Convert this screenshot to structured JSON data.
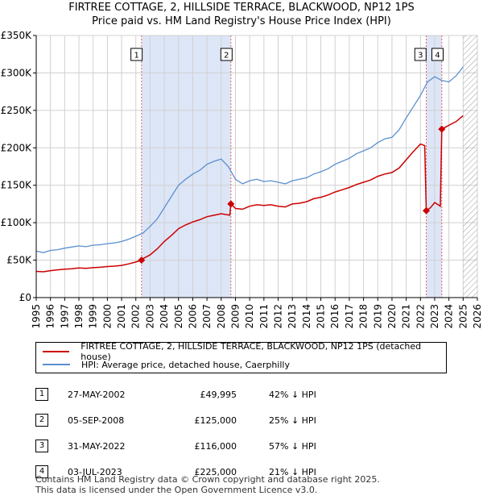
{
  "title_line1": "FIRTREE COTTAGE, 2, HILLSIDE TERRACE, BLACKWOOD, NP12 1PS",
  "title_line2": "Price paid vs. HM Land Registry's House Price Index (HPI)",
  "legend": {
    "property_label": "FIRTREE COTTAGE, 2, HILLSIDE TERRACE, BLACKWOOD, NP12 1PS (detached house)",
    "hpi_label": "HPI: Average price, detached house, Caerphilly"
  },
  "colors": {
    "property": "#cc0000",
    "hpi": "#5b8fd0",
    "shade": "#dde6f7",
    "grid": "#d0d0d0"
  },
  "sales": [
    {
      "num": "1",
      "date": "27-MAY-2002",
      "price": "£49,995",
      "hpi_diff": "42% ↓ HPI"
    },
    {
      "num": "2",
      "date": "05-SEP-2008",
      "price": "£125,000",
      "hpi_diff": "25% ↓ HPI"
    },
    {
      "num": "3",
      "date": "31-MAY-2022",
      "price": "£116,000",
      "hpi_diff": "57% ↓ HPI"
    },
    {
      "num": "4",
      "date": "03-JUL-2023",
      "price": "£225,000",
      "hpi_diff": "21% ↓ HPI"
    }
  ],
  "footer_line1": "Contains HM Land Registry data © Crown copyright and database right 2025.",
  "footer_line2": "This data is licensed under the Open Government Licence v3.0.",
  "chart_data": {
    "type": "line",
    "xlabel": "",
    "ylabel": "",
    "xlim": [
      1995,
      2026
    ],
    "ylim": [
      0,
      350000
    ],
    "x_ticks": [
      "1995",
      "1996",
      "1997",
      "1998",
      "1999",
      "2000",
      "2001",
      "2002",
      "2003",
      "2004",
      "2005",
      "2006",
      "2007",
      "2008",
      "2009",
      "2010",
      "2011",
      "2012",
      "2013",
      "2014",
      "2015",
      "2016",
      "2017",
      "2018",
      "2019",
      "2020",
      "2021",
      "2022",
      "2023",
      "2024",
      "2025",
      "2026"
    ],
    "y_ticks": [
      {
        "value": 0,
        "label": "£0"
      },
      {
        "value": 50000,
        "label": "£50K"
      },
      {
        "value": 100000,
        "label": "£100K"
      },
      {
        "value": 150000,
        "label": "£150K"
      },
      {
        "value": 200000,
        "label": "£200K"
      },
      {
        "value": 250000,
        "label": "£250K"
      },
      {
        "value": 300000,
        "label": "£300K"
      },
      {
        "value": 350000,
        "label": "£350K"
      }
    ],
    "shaded_ranges": [
      [
        2002.4,
        2008.68
      ],
      [
        2022.41,
        2023.5
      ]
    ],
    "future_hatch_from": 2025.0,
    "sale_markers": [
      {
        "label": "1",
        "x": 2002.4,
        "y": 49995
      },
      {
        "label": "2",
        "x": 2008.68,
        "y": 125000
      },
      {
        "label": "3",
        "x": 2022.41,
        "y": 116000
      },
      {
        "label": "4",
        "x": 2023.5,
        "y": 225000
      }
    ],
    "series": [
      {
        "name": "HPI: Average price, detached house, Caerphilly",
        "points": [
          [
            1995,
            62000
          ],
          [
            1995.5,
            60000
          ],
          [
            1996,
            63000
          ],
          [
            1996.5,
            64000
          ],
          [
            1997,
            66000
          ],
          [
            1997.5,
            67500
          ],
          [
            1998,
            69000
          ],
          [
            1998.5,
            68000
          ],
          [
            1999,
            70000
          ],
          [
            1999.5,
            70500
          ],
          [
            2000,
            72000
          ],
          [
            2000.5,
            73000
          ],
          [
            2001,
            75000
          ],
          [
            2001.5,
            78000
          ],
          [
            2002,
            82000
          ],
          [
            2002.5,
            86000
          ],
          [
            2003,
            95000
          ],
          [
            2003.5,
            105000
          ],
          [
            2004,
            120000
          ],
          [
            2004.5,
            135000
          ],
          [
            2005,
            150000
          ],
          [
            2005.5,
            158000
          ],
          [
            2006,
            165000
          ],
          [
            2006.5,
            170000
          ],
          [
            2007,
            178000
          ],
          [
            2007.5,
            182000
          ],
          [
            2008,
            185000
          ],
          [
            2008.5,
            175000
          ],
          [
            2009,
            158000
          ],
          [
            2009.5,
            152000
          ],
          [
            2010,
            156000
          ],
          [
            2010.5,
            158000
          ],
          [
            2011,
            155000
          ],
          [
            2011.5,
            156000
          ],
          [
            2012,
            154000
          ],
          [
            2012.5,
            152000
          ],
          [
            2013,
            156000
          ],
          [
            2013.5,
            158000
          ],
          [
            2014,
            160000
          ],
          [
            2014.5,
            165000
          ],
          [
            2015,
            168000
          ],
          [
            2015.5,
            172000
          ],
          [
            2016,
            178000
          ],
          [
            2016.5,
            182000
          ],
          [
            2017,
            186000
          ],
          [
            2017.5,
            192000
          ],
          [
            2018,
            196000
          ],
          [
            2018.5,
            200000
          ],
          [
            2019,
            207000
          ],
          [
            2019.5,
            212000
          ],
          [
            2020,
            214000
          ],
          [
            2020.5,
            224000
          ],
          [
            2021,
            240000
          ],
          [
            2021.5,
            255000
          ],
          [
            2022,
            270000
          ],
          [
            2022.5,
            288000
          ],
          [
            2023,
            295000
          ],
          [
            2023.5,
            290000
          ],
          [
            2024,
            288000
          ],
          [
            2024.5,
            296000
          ],
          [
            2025,
            308000
          ]
        ]
      },
      {
        "name": "FIRTREE COTTAGE, 2, HILLSIDE TERRACE, BLACKWOOD, NP12 1PS (detached house)",
        "points": [
          [
            1995,
            35000
          ],
          [
            1995.5,
            34500
          ],
          [
            1996,
            36000
          ],
          [
            1996.5,
            37000
          ],
          [
            1997,
            38000
          ],
          [
            1997.5,
            38500
          ],
          [
            1998,
            39500
          ],
          [
            1998.5,
            39000
          ],
          [
            1999,
            40000
          ],
          [
            1999.5,
            40500
          ],
          [
            2000,
            41500
          ],
          [
            2000.5,
            42000
          ],
          [
            2001,
            43000
          ],
          [
            2001.5,
            45000
          ],
          [
            2002,
            47500
          ],
          [
            2002.4,
            49995
          ],
          [
            2002.5,
            52000
          ],
          [
            2003,
            57000
          ],
          [
            2003.5,
            65000
          ],
          [
            2004,
            75000
          ],
          [
            2004.5,
            83000
          ],
          [
            2005,
            92000
          ],
          [
            2005.5,
            97000
          ],
          [
            2006,
            101000
          ],
          [
            2006.5,
            104000
          ],
          [
            2007,
            108000
          ],
          [
            2007.5,
            110000
          ],
          [
            2008,
            112000
          ],
          [
            2008.6,
            110000
          ],
          [
            2008.68,
            125000
          ],
          [
            2009,
            119000
          ],
          [
            2009.5,
            118000
          ],
          [
            2010,
            122000
          ],
          [
            2010.5,
            124000
          ],
          [
            2011,
            123000
          ],
          [
            2011.5,
            124000
          ],
          [
            2012,
            122000
          ],
          [
            2012.5,
            121000
          ],
          [
            2013,
            125000
          ],
          [
            2013.5,
            126000
          ],
          [
            2014,
            128000
          ],
          [
            2014.5,
            132000
          ],
          [
            2015,
            134000
          ],
          [
            2015.5,
            137000
          ],
          [
            2016,
            141000
          ],
          [
            2016.5,
            144000
          ],
          [
            2017,
            147000
          ],
          [
            2017.5,
            151000
          ],
          [
            2018,
            154000
          ],
          [
            2018.5,
            157000
          ],
          [
            2019,
            162000
          ],
          [
            2019.5,
            165000
          ],
          [
            2020,
            167000
          ],
          [
            2020.5,
            173000
          ],
          [
            2021,
            184000
          ],
          [
            2021.5,
            195000
          ],
          [
            2022,
            205000
          ],
          [
            2022.3,
            203000
          ],
          [
            2022.41,
            116000
          ],
          [
            2022.7,
            120000
          ],
          [
            2023,
            127000
          ],
          [
            2023.4,
            122000
          ],
          [
            2023.5,
            225000
          ],
          [
            2023.8,
            228000
          ],
          [
            2024,
            230000
          ],
          [
            2024.5,
            235000
          ],
          [
            2025,
            243000
          ]
        ]
      }
    ]
  }
}
